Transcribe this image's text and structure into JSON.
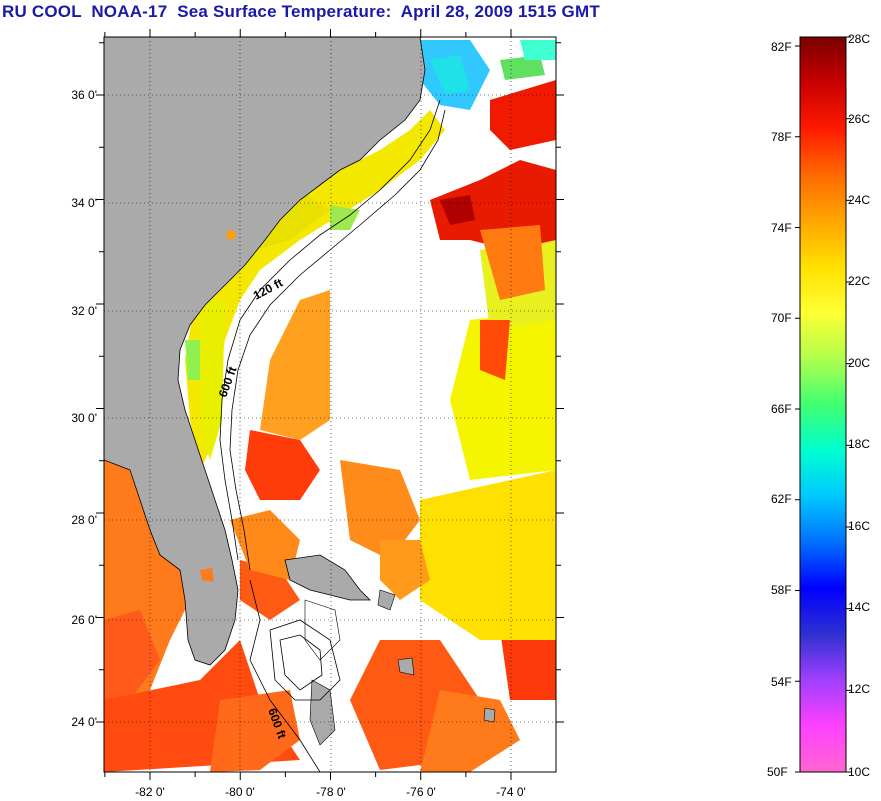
{
  "title": "RU COOL  NOAA-17  Sea Surface Temperature:  April 28, 2009 1515 GMT",
  "map": {
    "lon_labels": [
      "-82 0'",
      "-80 0'",
      "-78 0'",
      "-76 0'",
      "-74 0'"
    ],
    "lat_labels": [
      "36 0'",
      "34 0'",
      "32 0'",
      "30 0'",
      "28 0'",
      "26 0'",
      "24 0'"
    ],
    "contour_labels": [
      "120 ft",
      "600 ft",
      "600 ft"
    ],
    "colors": {
      "land": "#aaaaaa",
      "cloud": "#ffffff",
      "frame": "#000000"
    }
  },
  "colorbar": {
    "fahrenheit_labels": [
      "82F",
      "78F",
      "74F",
      "70F",
      "66F",
      "62F",
      "58F",
      "54F",
      "50F"
    ],
    "celsius_labels": [
      "28C",
      "26C",
      "24C",
      "22C",
      "20C",
      "18C",
      "16C",
      "14C",
      "12C",
      "10C"
    ],
    "gradient_colors": [
      "#7a0000",
      "#c80000",
      "#ff1a00",
      "#ff6a00",
      "#ffa500",
      "#ffe000",
      "#ffff33",
      "#b0ff4d",
      "#40ff70",
      "#00ffd0",
      "#00c8ff",
      "#0070ff",
      "#0000ff",
      "#3030d0",
      "#a040ff",
      "#ff40ff",
      "#ff66d0"
    ]
  }
}
